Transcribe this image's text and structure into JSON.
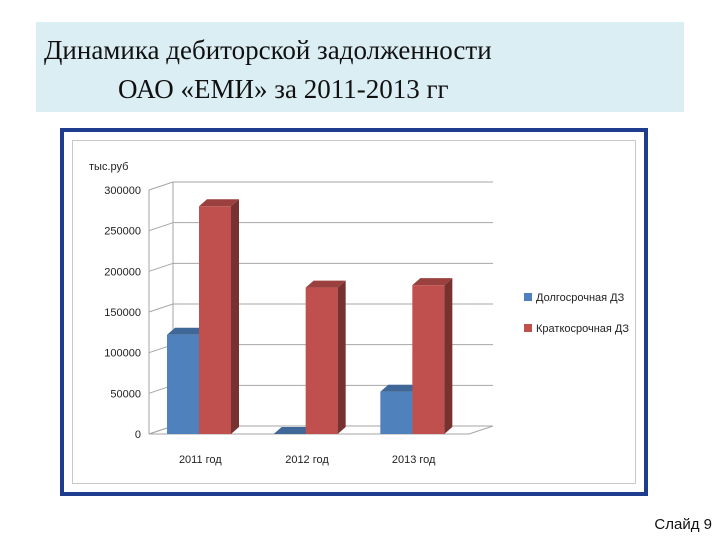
{
  "slide": {
    "title_line1": "Динамика дебиторской задолженности",
    "title_line2": "ОАО «ЕМИ»  за 2011-2013 гг",
    "slide_number": "Слайд 9"
  },
  "chart_data": {
    "type": "bar",
    "title": "",
    "ylabel": "тыс.руб",
    "xlabel": "",
    "categories": [
      "2011 год",
      "2012 год",
      "2013 год"
    ],
    "series": [
      {
        "name": "Долгосрочная ДЗ",
        "values": [
          122000,
          0,
          52000
        ],
        "color": "#4f81bd"
      },
      {
        "name": "Краткосрочная ДЗ",
        "values": [
          280000,
          180000,
          183000
        ],
        "color": "#c0504d"
      }
    ],
    "ylim": [
      0,
      300000
    ],
    "yticks": [
      "0",
      "50000",
      "100000",
      "150000",
      "200000",
      "250000",
      "300000"
    ],
    "grid": true,
    "legend": "right",
    "style": "3d-bar"
  }
}
